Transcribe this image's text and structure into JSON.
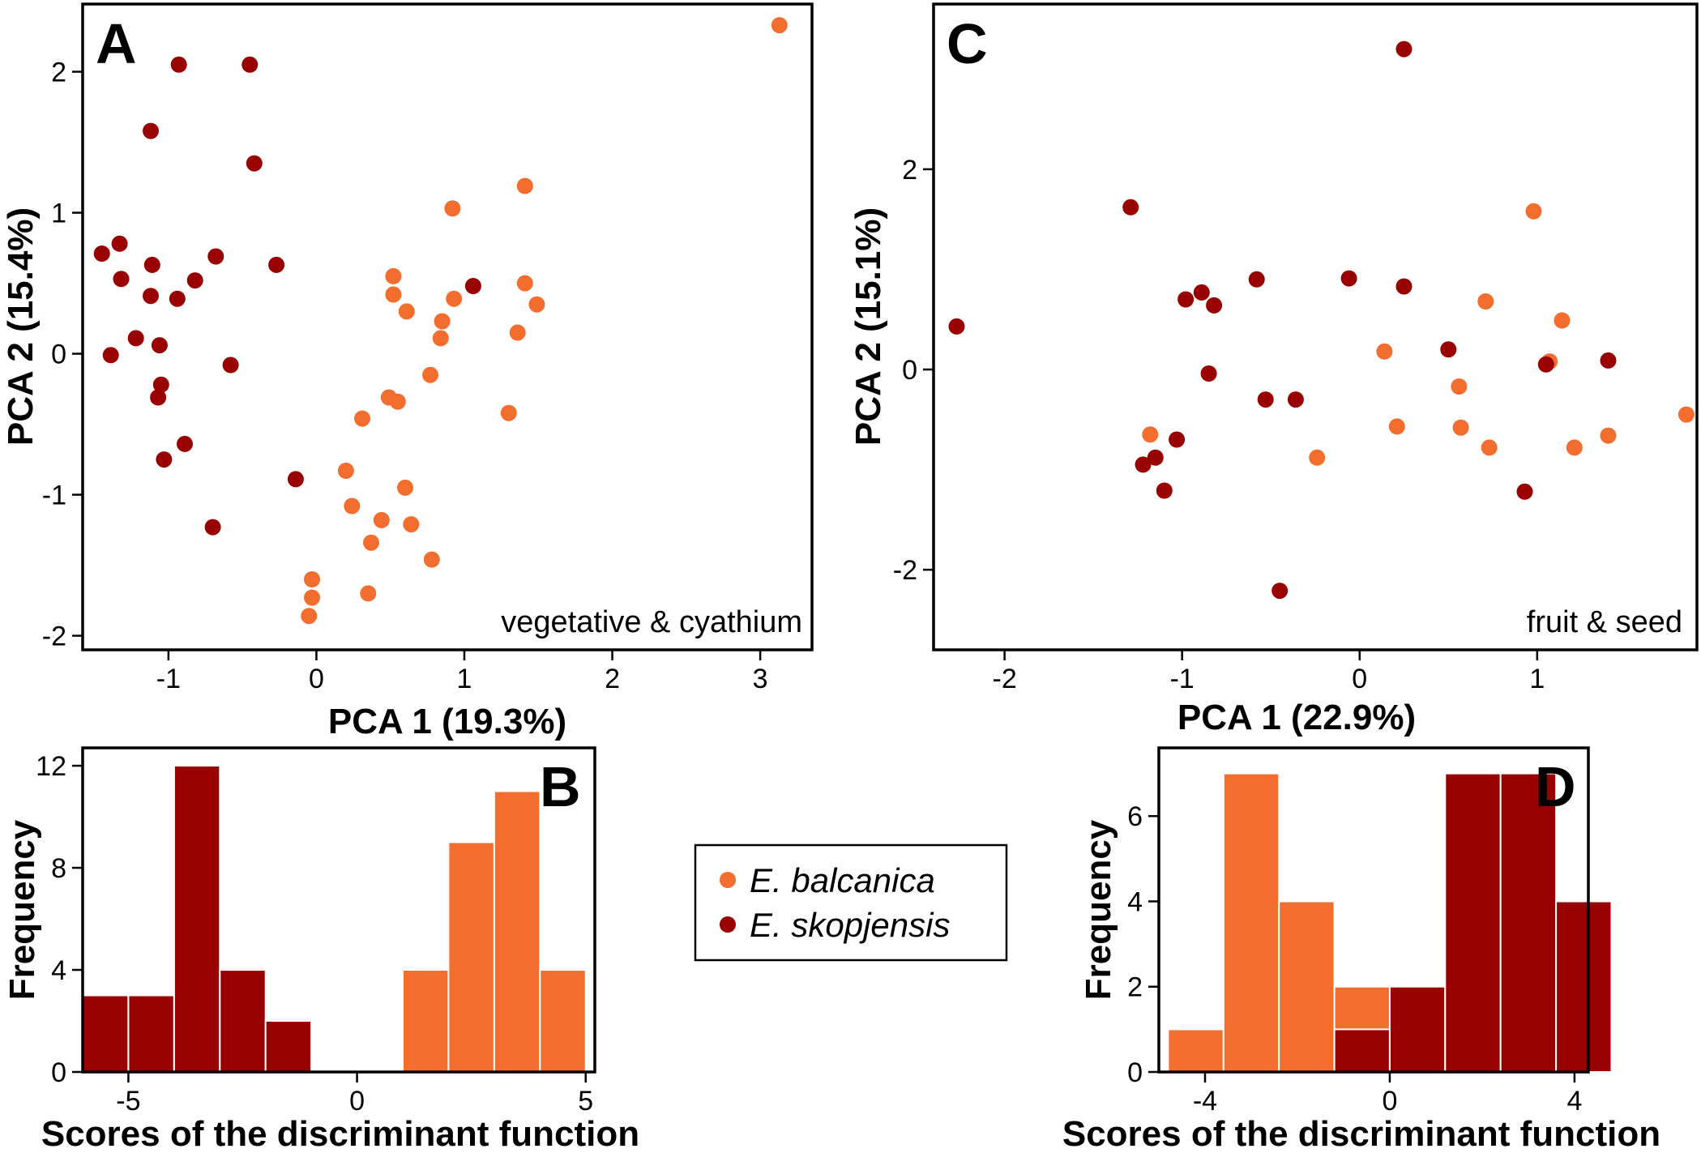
{
  "colors": {
    "balcanica": "#f26d2e",
    "skopjensis": "#990000"
  },
  "legend": {
    "balcanica": "E. balcanica",
    "skopjensis": "E. skopjensis"
  },
  "chart_data": [
    {
      "id": "A",
      "type": "scatter",
      "panel_label": "A",
      "annotation": "vegetative & cyathium",
      "xlabel": "PCA 1 (19.3%)",
      "ylabel": "PCA 2 (15.4%)",
      "xlim": [
        -1.58,
        3.35
      ],
      "ylim": [
        -2.1,
        2.48
      ],
      "xticks": [
        -1,
        0,
        1,
        2,
        3
      ],
      "xticklabels": [
        "-1",
        "0",
        "1",
        "2",
        "3"
      ],
      "yticks": [
        -2,
        -1,
        0,
        1,
        2
      ],
      "yticklabels": [
        "-2",
        "-1",
        "0",
        "1",
        "2"
      ],
      "series": [
        {
          "name": "E. balcanica",
          "color_key": "balcanica",
          "points": [
            [
              3.13,
              2.33
            ],
            [
              0.92,
              1.03
            ],
            [
              1.41,
              1.19
            ],
            [
              0.52,
              0.55
            ],
            [
              0.52,
              0.42
            ],
            [
              0.93,
              0.39
            ],
            [
              1.41,
              0.5
            ],
            [
              1.49,
              0.35
            ],
            [
              0.61,
              0.3
            ],
            [
              0.85,
              0.23
            ],
            [
              1.36,
              0.15
            ],
            [
              0.84,
              0.11
            ],
            [
              0.77,
              -0.15
            ],
            [
              0.49,
              -0.31
            ],
            [
              0.55,
              -0.34
            ],
            [
              1.3,
              -0.42
            ],
            [
              0.31,
              -0.46
            ],
            [
              0.2,
              -0.83
            ],
            [
              0.6,
              -0.95
            ],
            [
              0.24,
              -1.08
            ],
            [
              0.44,
              -1.18
            ],
            [
              0.64,
              -1.21
            ],
            [
              0.37,
              -1.34
            ],
            [
              0.78,
              -1.46
            ],
            [
              0.35,
              -1.7
            ],
            [
              -0.03,
              -1.6
            ],
            [
              -0.03,
              -1.73
            ],
            [
              -0.05,
              -1.86
            ]
          ]
        },
        {
          "name": "E. skopjensis",
          "color_key": "skopjensis",
          "points": [
            [
              -0.93,
              2.05
            ],
            [
              -0.45,
              2.05
            ],
            [
              -1.12,
              1.58
            ],
            [
              -0.42,
              1.35
            ],
            [
              -1.45,
              0.71
            ],
            [
              -1.33,
              0.78
            ],
            [
              -0.68,
              0.69
            ],
            [
              -1.11,
              0.63
            ],
            [
              -0.27,
              0.63
            ],
            [
              -1.32,
              0.53
            ],
            [
              -0.82,
              0.52
            ],
            [
              1.06,
              0.48
            ],
            [
              -1.12,
              0.41
            ],
            [
              -0.94,
              0.39
            ],
            [
              -1.22,
              0.11
            ],
            [
              -1.06,
              0.06
            ],
            [
              -1.39,
              -0.01
            ],
            [
              -0.58,
              -0.08
            ],
            [
              -1.05,
              -0.22
            ],
            [
              -1.07,
              -0.31
            ],
            [
              -0.89,
              -0.64
            ],
            [
              -1.03,
              -0.75
            ],
            [
              -0.14,
              -0.89
            ],
            [
              -0.7,
              -1.23
            ]
          ]
        }
      ]
    },
    {
      "id": "B",
      "type": "bar",
      "panel_label": "B",
      "xlabel": "Scores of the discriminant function",
      "ylabel": "Frequency",
      "xlim": [
        -6.0,
        5.2
      ],
      "ylim": [
        0,
        12.7
      ],
      "xticks": [
        -5,
        0,
        5
      ],
      "xticklabels": [
        "-5",
        "0",
        "5"
      ],
      "yticks": [
        0,
        4,
        8,
        12
      ],
      "yticklabels": [
        "0",
        "4",
        "8",
        "12"
      ],
      "bin_edges": [
        -6,
        -5,
        -4,
        -3,
        -2,
        -1,
        0,
        1,
        2,
        3,
        4,
        5
      ],
      "series": [
        {
          "name": "E. skopjensis",
          "color_key": "skopjensis",
          "values": [
            3,
            3,
            12,
            4,
            2,
            0,
            0,
            0,
            0,
            0,
            0
          ]
        },
        {
          "name": "E. balcanica",
          "color_key": "balcanica",
          "values": [
            0,
            0,
            0,
            0,
            0,
            0,
            0,
            4,
            9,
            11,
            4
          ]
        }
      ]
    },
    {
      "id": "C",
      "type": "scatter",
      "panel_label": "C",
      "annotation": "fruit & seed",
      "xlabel": "PCA 1 (22.9%)",
      "ylabel": "PCA 2 (15.1%)",
      "xlim": [
        -2.4,
        1.9
      ],
      "ylim": [
        -2.8,
        3.65
      ],
      "xticks": [
        -2,
        -1,
        0,
        1
      ],
      "xticklabels": [
        "-2",
        "-1",
        "0",
        "1"
      ],
      "yticks": [
        -2,
        0,
        2
      ],
      "yticklabels": [
        "-2",
        "0",
        "2"
      ],
      "series": [
        {
          "name": "E. balcanica",
          "color_key": "balcanica",
          "points": [
            [
              0.98,
              1.58
            ],
            [
              0.71,
              0.68
            ],
            [
              1.14,
              0.49
            ],
            [
              0.14,
              0.18
            ],
            [
              1.07,
              0.08
            ],
            [
              0.56,
              -0.17
            ],
            [
              0.21,
              -0.57
            ],
            [
              0.57,
              -0.58
            ],
            [
              1.4,
              -0.66
            ],
            [
              1.21,
              -0.78
            ],
            [
              0.73,
              -0.78
            ],
            [
              -0.24,
              -0.88
            ],
            [
              1.84,
              -0.45
            ],
            [
              -1.18,
              -0.65
            ]
          ]
        },
        {
          "name": "E. skopjensis",
          "color_key": "skopjensis",
          "points": [
            [
              0.25,
              3.2
            ],
            [
              -1.29,
              1.62
            ],
            [
              -0.06,
              0.91
            ],
            [
              -0.58,
              0.9
            ],
            [
              0.25,
              0.83
            ],
            [
              -0.89,
              0.77
            ],
            [
              -0.98,
              0.7
            ],
            [
              -0.82,
              0.64
            ],
            [
              -2.27,
              0.43
            ],
            [
              0.5,
              0.2
            ],
            [
              1.4,
              0.09
            ],
            [
              1.05,
              0.05
            ],
            [
              -0.85,
              -0.04
            ],
            [
              -0.53,
              -0.3
            ],
            [
              -0.36,
              -0.3
            ],
            [
              -1.03,
              -0.7
            ],
            [
              -1.15,
              -0.88
            ],
            [
              -1.22,
              -0.95
            ],
            [
              -1.1,
              -1.21
            ],
            [
              0.93,
              -1.22
            ],
            [
              -0.45,
              -2.21
            ]
          ]
        }
      ]
    },
    {
      "id": "D",
      "type": "bar",
      "panel_label": "D",
      "xlabel": "Scores of the discriminant function",
      "ylabel": "Frequency",
      "xlim": [
        -5.0,
        4.3
      ],
      "ylim": [
        0,
        7.6
      ],
      "xticks": [
        -4,
        0,
        4
      ],
      "xticklabels": [
        "-4",
        "0",
        "4"
      ],
      "yticks": [
        0,
        2,
        4,
        6
      ],
      "yticklabels": [
        "0",
        "2",
        "4",
        "6"
      ],
      "bin_edges": [
        -4.8,
        -3.6,
        -2.4,
        -1.2,
        0,
        1.2,
        2.4,
        3.6,
        4.8
      ],
      "series": [
        {
          "name": "E. balcanica",
          "color_key": "balcanica",
          "values": [
            1,
            7,
            4,
            2,
            0,
            0,
            0,
            0
          ]
        },
        {
          "name": "E. skopjensis",
          "color_key": "skopjensis",
          "values": [
            0,
            0,
            0,
            1,
            2,
            7,
            7,
            4
          ]
        }
      ]
    }
  ]
}
